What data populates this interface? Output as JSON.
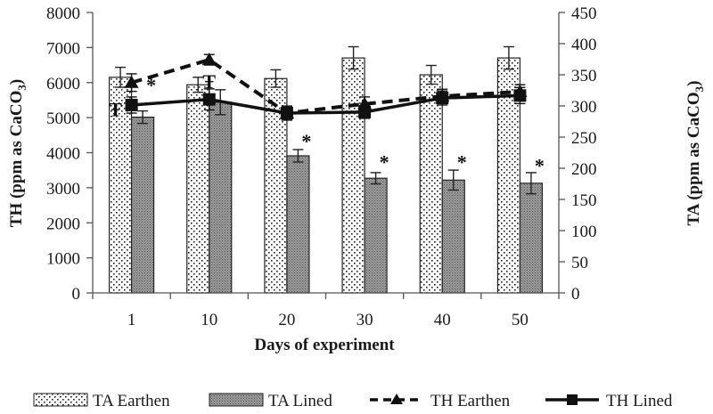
{
  "chart_data": {
    "type": "bar",
    "title": "",
    "xlabel": "Days of experiment",
    "ylabel_left": "TH (ppm as CaCO3)",
    "ylabel_right": "TA (ppm as CaCO3)",
    "categories": [
      "1",
      "10",
      "20",
      "30",
      "40",
      "50"
    ],
    "ylim_left": [
      0,
      8000
    ],
    "yticks_left": [
      0,
      1000,
      2000,
      3000,
      4000,
      5000,
      6000,
      7000,
      8000
    ],
    "ylim_right": [
      0,
      450
    ],
    "yticks_right": [
      0,
      50,
      100,
      150,
      200,
      250,
      300,
      350,
      400,
      450
    ],
    "grid": false,
    "legend_position": "bottom",
    "series": [
      {
        "name": "TA Earthen",
        "kind": "bar",
        "axis": "right",
        "pattern": "dots",
        "values": [
          346,
          334,
          344,
          377,
          350,
          377
        ],
        "errors": [
          16,
          12,
          14,
          18,
          15,
          18
        ]
      },
      {
        "name": "TA Lined",
        "kind": "bar",
        "axis": "right",
        "pattern": "dense-gray",
        "values": [
          282,
          306,
          220,
          184,
          181,
          176
        ],
        "errors": [
          10,
          20,
          10,
          9,
          16,
          17
        ]
      },
      {
        "name": "TH Earthen",
        "kind": "line",
        "axis": "left",
        "style": "dashed",
        "marker": "triangle",
        "values": [
          6000,
          6650,
          5130,
          5390,
          5610,
          5740
        ],
        "errors": [
          250,
          150,
          200,
          200,
          200,
          200
        ]
      },
      {
        "name": "TH Lined",
        "kind": "line",
        "axis": "left",
        "style": "solid",
        "marker": "square",
        "values": [
          5360,
          5520,
          5130,
          5160,
          5560,
          5630
        ],
        "errors": [
          230,
          300,
          200,
          180,
          200,
          230
        ]
      }
    ],
    "annotations": [
      {
        "text": "*",
        "category": "1",
        "series": "TA Lined",
        "value": 6000
      },
      {
        "text": "Ŧ",
        "category": "1",
        "series": "TH Lined",
        "value": 5300
      },
      {
        "text": "Ŧ",
        "category": "10",
        "series": "TH Earthen",
        "value": 6100
      },
      {
        "text": "*",
        "category": "20",
        "series": "TA Lined",
        "value": 4400
      },
      {
        "text": "*",
        "category": "30",
        "series": "TA Lined",
        "value": 3800
      },
      {
        "text": "*",
        "category": "40",
        "series": "TA Lined",
        "value": 3800
      },
      {
        "text": "*",
        "category": "50",
        "series": "TA Lined",
        "value": 3700
      }
    ]
  }
}
